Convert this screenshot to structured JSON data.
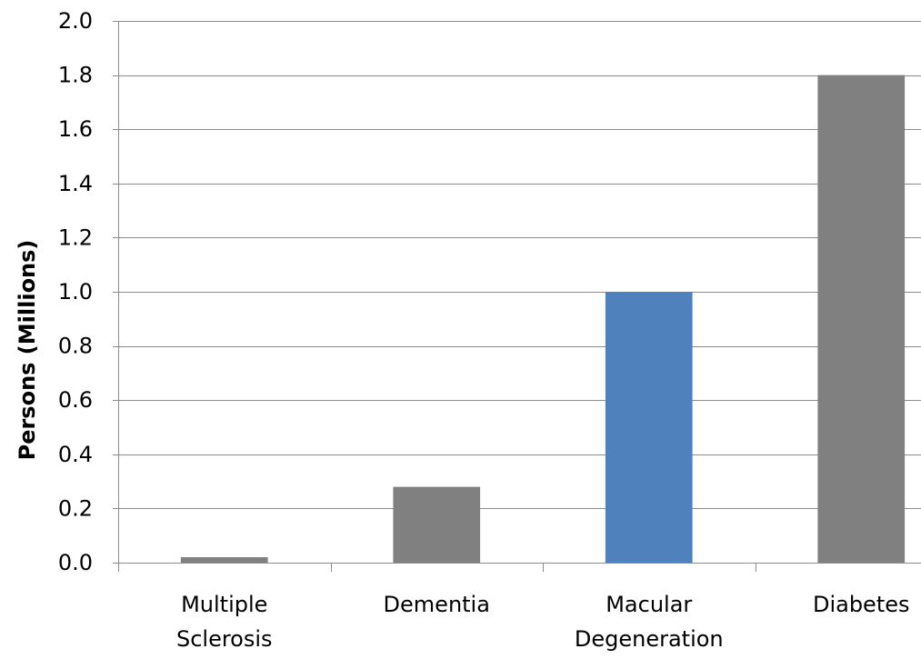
{
  "chart_data": {
    "type": "bar",
    "categories": [
      [
        "Multiple",
        "Sclerosis"
      ],
      [
        "Dementia"
      ],
      [
        "Macular",
        "Degeneration"
      ],
      [
        "Diabetes"
      ]
    ],
    "values": [
      0.02,
      0.28,
      1.0,
      1.8
    ],
    "bar_colors": [
      "#808080",
      "#808080",
      "#4F81BD",
      "#808080"
    ],
    "title": "",
    "xlabel": "",
    "ylabel": "Persons (Millions)",
    "ylim": [
      0,
      2.0
    ],
    "yticks": [
      "0.0",
      "0.2",
      "0.4",
      "0.6",
      "0.8",
      "1.0",
      "1.2",
      "1.4",
      "1.6",
      "1.8",
      "2.0"
    ],
    "grid": true,
    "legend": "none",
    "colors": {
      "grid": "#8c8c8c",
      "axis": "#8c8c8c",
      "text": "#000000"
    }
  }
}
